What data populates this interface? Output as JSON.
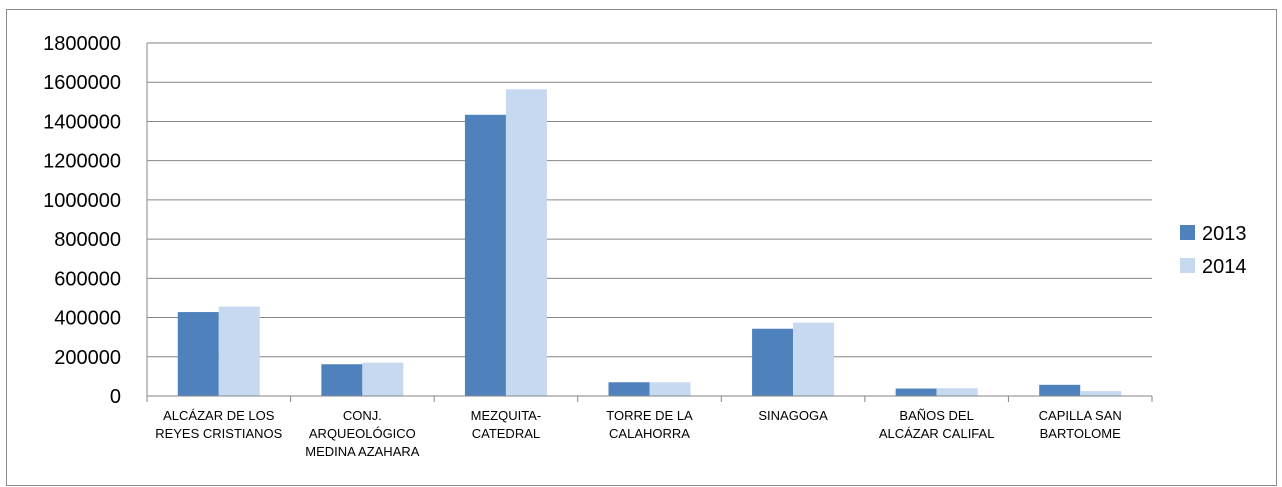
{
  "chart_data": {
    "type": "bar",
    "title": "",
    "xlabel": "",
    "ylabel": "",
    "ylim": [
      0,
      1800000
    ],
    "yticks": [
      0,
      200000,
      400000,
      600000,
      800000,
      1000000,
      1200000,
      1400000,
      1600000,
      1800000
    ],
    "grid": true,
    "legend_position": "right",
    "categories": [
      [
        "ALCÁZAR DE LOS",
        "REYES CRISTIANOS"
      ],
      [
        "CONJ.",
        "ARQUEOLÓGICO",
        "MEDINA AZAHARA"
      ],
      [
        "MEZQUITA-",
        "CATEDRAL"
      ],
      [
        "TORRE DE LA",
        "CALAHORRA"
      ],
      [
        "SINAGOGA"
      ],
      [
        "BAÑOS DEL",
        "ALCÁZAR CALIFAL"
      ],
      [
        "CAPILLA SAN",
        "BARTOLOME"
      ]
    ],
    "series": [
      {
        "name": "2013",
        "color": "#4f81bd",
        "values": [
          428000,
          162000,
          1434000,
          70000,
          343000,
          38000,
          57000
        ]
      },
      {
        "name": "2014",
        "color": "#c6d9f1",
        "values": [
          456000,
          170000,
          1564000,
          70000,
          374000,
          40000,
          25000
        ]
      }
    ]
  }
}
